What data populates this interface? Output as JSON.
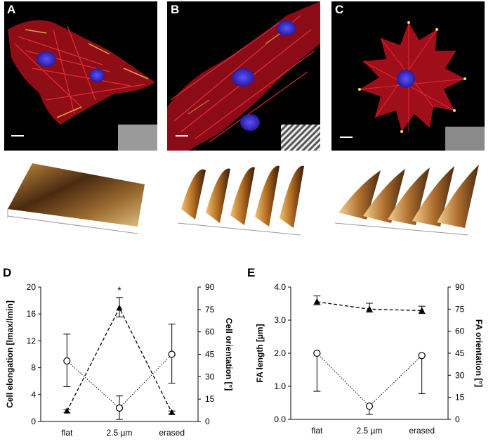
{
  "panels": {
    "A": {
      "letter": "A"
    },
    "B": {
      "letter": "B"
    },
    "C": {
      "letter": "C"
    },
    "D": {
      "letter": "D"
    },
    "E": {
      "letter": "E"
    }
  },
  "chart_data": [
    {
      "type": "line",
      "panel": "D",
      "categories": [
        "flat",
        "2.5 µm",
        "erased"
      ],
      "ylabel": "Cell elongation [lmax/lmin]",
      "ylabel_right": "Cell orientation [°]",
      "ylim": [
        0,
        20
      ],
      "yticks": [
        0,
        4,
        8,
        12,
        16,
        20
      ],
      "ylim_right": [
        0,
        90
      ],
      "yticks_right": [
        0,
        15,
        30,
        45,
        60,
        75,
        90
      ],
      "series": [
        {
          "axis": "left",
          "marker": "circle-open",
          "line": "dotted",
          "values": [
            9.0,
            2.0,
            10.0
          ],
          "err_low": [
            5.2,
            0.3,
            5.7
          ],
          "err_high": [
            13.0,
            3.8,
            14.5
          ]
        },
        {
          "axis": "right",
          "marker": "triangle-filled",
          "line": "dashed",
          "values": [
            7.0,
            76.0,
            6.0
          ],
          "err_low": [
            6.0,
            70.0,
            5.0
          ],
          "err_high": [
            8.0,
            83.0,
            7.0
          ]
        }
      ],
      "annotations": [
        "*"
      ],
      "grid": false
    },
    {
      "type": "line",
      "panel": "E",
      "categories": [
        "flat",
        "2.5 µm",
        "erased"
      ],
      "ylabel": "FA length [µm]",
      "ylabel_right": "FA orientation [°]",
      "ylim": [
        0,
        4
      ],
      "yticks": [
        "0.0",
        "1.0",
        "2.0",
        "3.0",
        "4.0"
      ],
      "yticks_values": [
        0,
        1,
        2,
        3,
        4
      ],
      "ylim_right": [
        0,
        90
      ],
      "yticks_right": [
        0,
        15,
        30,
        45,
        60,
        75,
        90
      ],
      "series": [
        {
          "axis": "left",
          "marker": "circle-open",
          "line": "dotted",
          "values": [
            2.0,
            0.4,
            1.93
          ],
          "err_low": [
            0.85,
            0.15,
            0.78
          ],
          "err_high": [
            2.0,
            0.4,
            1.93
          ]
        },
        {
          "axis": "right",
          "marker": "triangle-filled",
          "line": "dashed",
          "values": [
            80,
            75,
            74
          ],
          "err_low": [
            78,
            73,
            72
          ],
          "err_high": [
            84,
            79,
            77
          ]
        }
      ],
      "grid": false
    }
  ]
}
